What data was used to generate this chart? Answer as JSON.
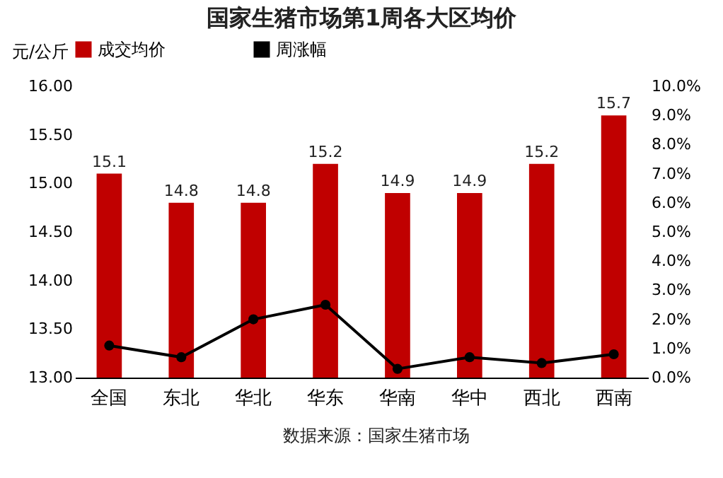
{
  "chart_data": {
    "type": "bar",
    "title": "国家生猪市场第1周各大区均价",
    "ylabel": "元/公斤",
    "categories": [
      "全国",
      "东北",
      "华北",
      "华东",
      "华南",
      "华中",
      "西北",
      "西南"
    ],
    "series": [
      {
        "name": "成交均价",
        "color": "#c00000",
        "values": [
          15.1,
          14.8,
          14.8,
          15.2,
          14.9,
          14.9,
          15.2,
          15.7
        ],
        "value_labels": [
          "15.1",
          "14.8",
          "14.8",
          "15.2",
          "14.9",
          "14.9",
          "15.2",
          "15.7"
        ]
      },
      {
        "name": "周涨幅",
        "type": "line",
        "axis": "y2",
        "color": "#000000",
        "values": [
          1.1,
          0.7,
          2.0,
          2.5,
          0.3,
          0.7,
          0.5,
          0.8
        ]
      }
    ],
    "legend": "top",
    "marker": "circle",
    "grid": false,
    "ylim": [
      13,
      16
    ],
    "yticks": [
      {
        "value": 13,
        "label": "13.00"
      },
      {
        "value": 13.5,
        "label": "13.50"
      },
      {
        "value": 14,
        "label": "14.00"
      },
      {
        "value": 14.5,
        "label": "14.50"
      },
      {
        "value": 15,
        "label": "15.00"
      },
      {
        "value": 15.5,
        "label": "15.50"
      },
      {
        "value": 16,
        "label": "16.00"
      }
    ],
    "y2lim": [
      0,
      10
    ],
    "y2ticks": [
      {
        "value": 0,
        "label": "0.0%"
      },
      {
        "value": 1,
        "label": "1.0%"
      },
      {
        "value": 2,
        "label": "2.0%"
      },
      {
        "value": 3,
        "label": "3.0%"
      },
      {
        "value": 4,
        "label": "4.0%"
      },
      {
        "value": 5,
        "label": "5.0%"
      },
      {
        "value": 6,
        "label": "6.0%"
      },
      {
        "value": 7,
        "label": "7.0%"
      },
      {
        "value": 8,
        "label": "8.0%"
      },
      {
        "value": 9,
        "label": "9.0%"
      },
      {
        "value": 10,
        "label": "10.0%"
      }
    ],
    "annotations": [
      "数据来源：国家生猪市场"
    ]
  }
}
